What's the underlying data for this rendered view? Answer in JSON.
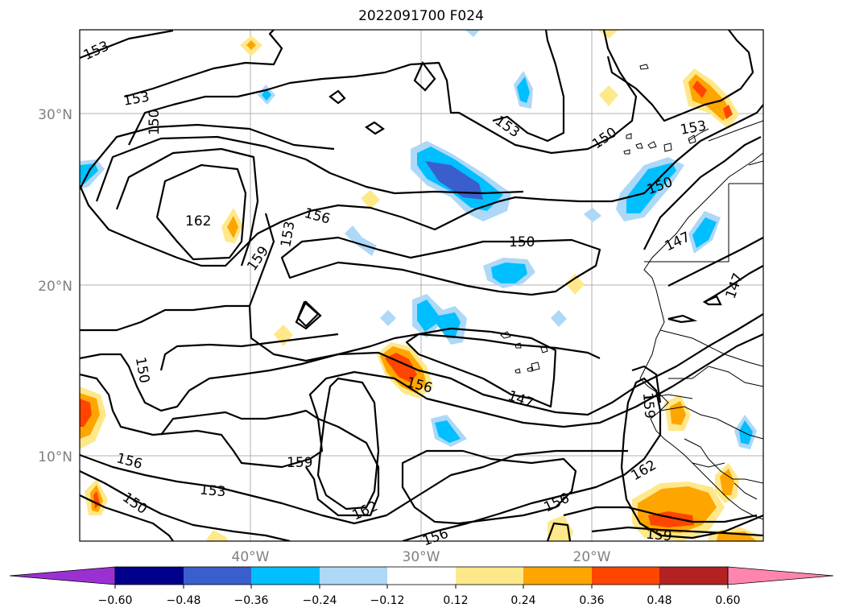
{
  "title": "2022091700 F024",
  "latitude_labels": [
    "30°N",
    "20°N",
    "10°N"
  ],
  "longitude_labels": [
    "40°W",
    "30°W",
    "20°W"
  ],
  "contour_labels": [
    "153",
    "153",
    "150",
    "162",
    "159",
    "153",
    "156",
    "150",
    "150",
    "153",
    "153",
    "150",
    "147",
    "147",
    "150",
    "156",
    "147",
    "159",
    "159",
    "156",
    "153",
    "150",
    "162",
    "156",
    "162",
    "156",
    "159"
  ],
  "colorbar": {
    "ticks": [
      "−0.60",
      "−0.48",
      "−0.36",
      "−0.24",
      "−0.12",
      "0.12",
      "0.24",
      "0.36",
      "0.48",
      "0.60"
    ],
    "colors": [
      "#9b30d2",
      "#00008b",
      "#3a5fcd",
      "#00bfff",
      "#add8f7",
      "#ffffff",
      "#ffe88a",
      "#ffa500",
      "#ff4500",
      "#b22222",
      "#ff85b0"
    ]
  },
  "shading_colors": {
    "light_blue": "#add8f7",
    "blue": "#00bfff",
    "royal_blue": "#3a5fcd",
    "yellow": "#ffe88a",
    "orange": "#ffa500",
    "red_orange": "#ff4500"
  }
}
